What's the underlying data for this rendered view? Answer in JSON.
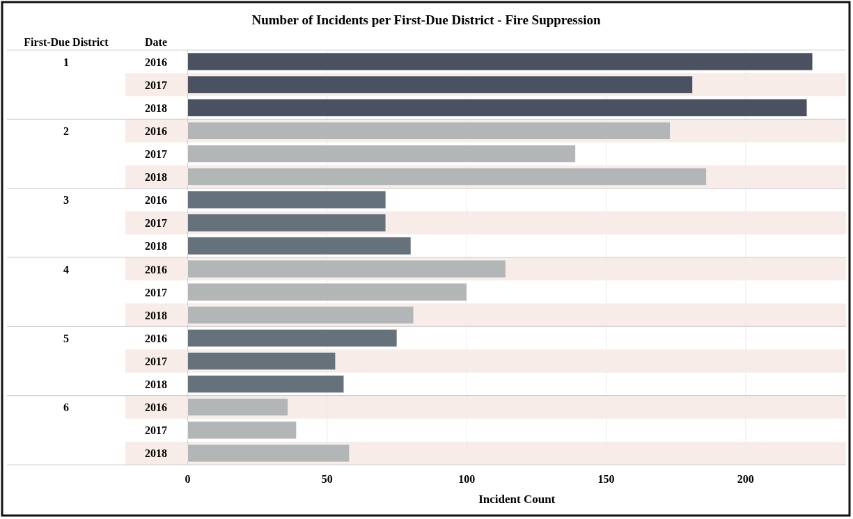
{
  "chart_data": {
    "type": "bar",
    "orientation": "horizontal",
    "title": "Number of Incidents per First-Due District - Fire Suppression",
    "legend_title": "First-Due District",
    "ylabel": "Date",
    "xlabel": "Incident Count",
    "categories": [
      "2016",
      "2017",
      "2018",
      "2016",
      "2017",
      "2018",
      "2016",
      "2017",
      "2018",
      "2016",
      "2017",
      "2018",
      "2016",
      "2017",
      "2018",
      "2016",
      "2017",
      "2018"
    ],
    "values": [
      224,
      181,
      222,
      173,
      139,
      186,
      71,
      71,
      80,
      114,
      100,
      81,
      75,
      53,
      56,
      36,
      39,
      58
    ],
    "colors": [
      "#4a5261",
      "#4a5261",
      "#4a5261",
      "#b3b6b7",
      "#b3b6b7",
      "#b3b6b7",
      "#66727b",
      "#66727b",
      "#66727b",
      "#b3b6b7",
      "#b3b6b7",
      "#b3b6b7",
      "#66727b",
      "#66727b",
      "#66727b",
      "#b3b6b7",
      "#b3b6b7",
      "#b3b6b7"
    ],
    "annotations": [
      "1",
      "2",
      "3",
      "4",
      "5",
      "6"
    ],
    "xlim": [
      0,
      236
    ],
    "xticks": [
      0,
      50,
      100,
      150,
      200
    ],
    "grid": "x"
  }
}
